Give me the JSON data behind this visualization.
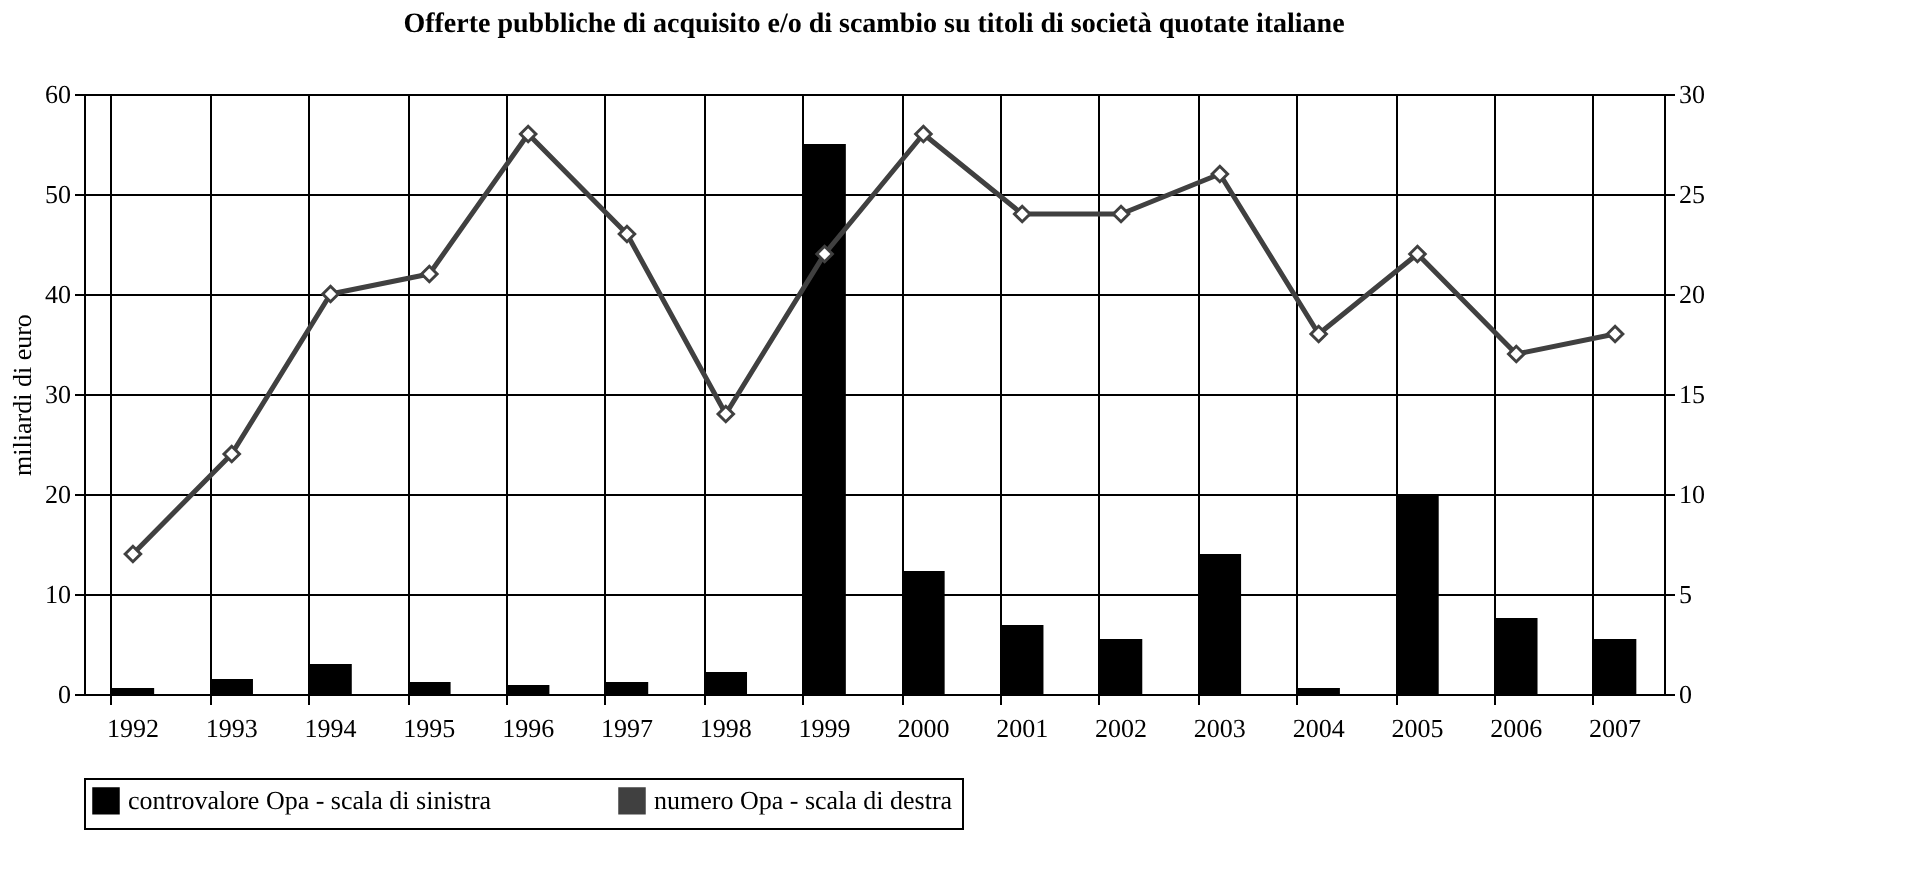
{
  "chart_data": {
    "type": "bar",
    "title": "Offerte pubbliche di acquisito e/o di scambio su titoli di società quotate italiane",
    "ylabel": "miliardi di euro",
    "categories": [
      "1992",
      "1993",
      "1994",
      "1995",
      "1996",
      "1997",
      "1998",
      "1999",
      "2000",
      "2001",
      "2002",
      "2003",
      "2004",
      "2005",
      "2006",
      "2007"
    ],
    "series": [
      {
        "name": "controvalore Opa - scala di sinistra",
        "color": "#000000",
        "values": [
          0.6,
          1.5,
          3.0,
          1.2,
          0.9,
          1.2,
          2.2,
          55,
          12.3,
          6.9,
          5.5,
          14,
          0.6,
          20,
          7.6,
          5.5
        ]
      },
      {
        "name": "numero Opa - scala di destra",
        "type": "line",
        "axis": "y2",
        "color": "#404040",
        "values": [
          7,
          12,
          20,
          21,
          28,
          23,
          14,
          22,
          28,
          24,
          24,
          26,
          18,
          22,
          17,
          18
        ]
      }
    ],
    "ylim": [
      0,
      60
    ],
    "yticks": [
      0,
      10,
      20,
      30,
      40,
      50,
      60
    ],
    "y2lim": [
      0,
      30
    ],
    "y2ticks": [
      0,
      5,
      10,
      15,
      20,
      25,
      30
    ],
    "grid": true,
    "legend": "bottom",
    "marker": "diamond"
  }
}
